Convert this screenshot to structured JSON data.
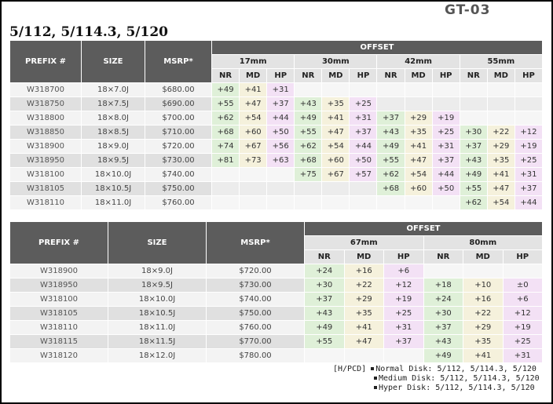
{
  "brand": "GT-03",
  "title": "5/112, 5/114.3, 5/120",
  "table1": {
    "headers": {
      "prefix": "PREFIX #",
      "size": "SIZE",
      "msrp": "MSRP*",
      "offset": "OFFSET"
    },
    "groups": [
      "17mm",
      "30mm",
      "42mm",
      "55mm"
    ],
    "subs": [
      "NR",
      "MD",
      "HP"
    ],
    "rows": [
      {
        "prefix": "W318700",
        "size": "18×7.0J",
        "msrp": "$680.00",
        "vals": [
          "+49",
          "+41",
          "+31",
          "",
          "",
          "",
          "",
          "",
          "",
          "",
          "",
          ""
        ]
      },
      {
        "prefix": "W318750",
        "size": "18×7.5J",
        "msrp": "$690.00",
        "vals": [
          "+55",
          "+47",
          "+37",
          "+43",
          "+35",
          "+25",
          "",
          "",
          "",
          "",
          "",
          ""
        ]
      },
      {
        "prefix": "W318800",
        "size": "18×8.0J",
        "msrp": "$700.00",
        "vals": [
          "+62",
          "+54",
          "+44",
          "+49",
          "+41",
          "+31",
          "+37",
          "+29",
          "+19",
          "",
          "",
          ""
        ]
      },
      {
        "prefix": "W318850",
        "size": "18×8.5J",
        "msrp": "$710.00",
        "vals": [
          "+68",
          "+60",
          "+50",
          "+55",
          "+47",
          "+37",
          "+43",
          "+35",
          "+25",
          "+30",
          "+22",
          "+12"
        ]
      },
      {
        "prefix": "W318900",
        "size": "18×9.0J",
        "msrp": "$720.00",
        "vals": [
          "+74",
          "+67",
          "+56",
          "+62",
          "+54",
          "+44",
          "+49",
          "+41",
          "+31",
          "+37",
          "+29",
          "+19"
        ]
      },
      {
        "prefix": "W318950",
        "size": "18×9.5J",
        "msrp": "$730.00",
        "vals": [
          "+81",
          "+73",
          "+63",
          "+68",
          "+60",
          "+50",
          "+55",
          "+47",
          "+37",
          "+43",
          "+35",
          "+25"
        ]
      },
      {
        "prefix": "W318100",
        "size": "18×10.0J",
        "msrp": "$740.00",
        "vals": [
          "",
          "",
          "",
          "+75",
          "+67",
          "+57",
          "+62",
          "+54",
          "+44",
          "+49",
          "+41",
          "+31"
        ]
      },
      {
        "prefix": "W318105",
        "size": "18×10.5J",
        "msrp": "$750.00",
        "vals": [
          "",
          "",
          "",
          "",
          "",
          "",
          "+68",
          "+60",
          "+50",
          "+55",
          "+47",
          "+37"
        ]
      },
      {
        "prefix": "W318110",
        "size": "18×11.0J",
        "msrp": "$760.00",
        "vals": [
          "",
          "",
          "",
          "",
          "",
          "",
          "",
          "",
          "",
          "+62",
          "+54",
          "+44"
        ]
      }
    ]
  },
  "table2": {
    "headers": {
      "prefix": "PREFIX #",
      "size": "SIZE",
      "msrp": "MSRP*",
      "offset": "OFFSET"
    },
    "groups": [
      "67mm",
      "80mm"
    ],
    "subs": [
      "NR",
      "MD",
      "HP"
    ],
    "rows": [
      {
        "prefix": "W318900",
        "size": "18×9.0J",
        "msrp": "$720.00",
        "vals": [
          "+24",
          "+16",
          "+6",
          "",
          "",
          ""
        ]
      },
      {
        "prefix": "W318950",
        "size": "18×9.5J",
        "msrp": "$730.00",
        "vals": [
          "+30",
          "+22",
          "+12",
          "+18",
          "+10",
          "±0"
        ]
      },
      {
        "prefix": "W318100",
        "size": "18×10.0J",
        "msrp": "$740.00",
        "vals": [
          "+37",
          "+29",
          "+19",
          "+24",
          "+16",
          "+6"
        ]
      },
      {
        "prefix": "W318105",
        "size": "18×10.5J",
        "msrp": "$750.00",
        "vals": [
          "+43",
          "+35",
          "+25",
          "+30",
          "+22",
          "+12"
        ]
      },
      {
        "prefix": "W318110",
        "size": "18×11.0J",
        "msrp": "$760.00",
        "vals": [
          "+49",
          "+41",
          "+31",
          "+37",
          "+29",
          "+19"
        ]
      },
      {
        "prefix": "W318115",
        "size": "18×11.5J",
        "msrp": "$770.00",
        "vals": [
          "+55",
          "+47",
          "+37",
          "+43",
          "+35",
          "+25"
        ]
      },
      {
        "prefix": "W318120",
        "size": "18×12.0J",
        "msrp": "$780.00",
        "vals": [
          "",
          "",
          "",
          "+49",
          "+41",
          "+31"
        ]
      }
    ]
  },
  "legend": {
    "prefix": "[H/PCD]",
    "lines": [
      "Normal Disk: 5/112, 5/114.3, 5/120",
      "Medium Disk: 5/112, 5/114.3, 5/120",
      "Hyper Disk: 5/112, 5/114.3, 5/120"
    ]
  }
}
